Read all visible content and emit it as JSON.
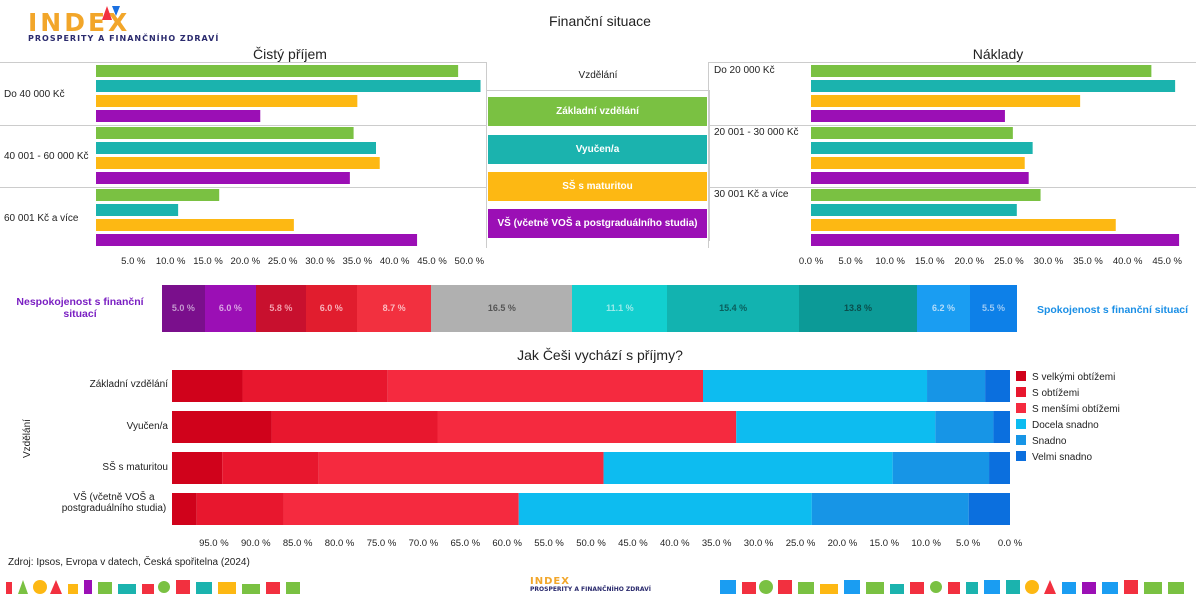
{
  "header": {
    "logo_text": "INDEX",
    "logo_subtitle": "PROSPERITY A FINANČNÍHO ZDRAVÍ",
    "title": "Finanční situace"
  },
  "colors": {
    "zakladni": "#7ac142",
    "vyucen": "#1bb3ae",
    "ss": "#fdb813",
    "vs": "#9b0fb5",
    "grid": "#cccccc"
  },
  "education_legend": {
    "title": "Vzdělání",
    "items": [
      "Základní vzdělání",
      "Vyučen/a",
      "SŠ s maturitou",
      "VŠ (včetně VOŠ a postgraduálního studia)"
    ]
  },
  "chart_data": [
    {
      "type": "bar",
      "orientation": "horizontal",
      "title": "Čistý příjem",
      "categories": [
        "Do 40 000 Kč",
        "40 001 - 60 000 Kč",
        "60 001 Kč a více"
      ],
      "series": [
        {
          "name": "Základní vzdělání",
          "values": [
            48.5,
            34.5,
            16.5
          ]
        },
        {
          "name": "Vyučen/a",
          "values": [
            51.5,
            37.5,
            11.0
          ]
        },
        {
          "name": "SŠ s maturitou",
          "values": [
            35.0,
            38.0,
            26.5
          ]
        },
        {
          "name": "VŠ (včetně VOŠ a postgraduálního studia)",
          "values": [
            22.0,
            34.0,
            43.0
          ]
        }
      ],
      "xlim": [
        0,
        52.5
      ],
      "ticks": [
        "5.0 %",
        "10.0 %",
        "15.0 %",
        "20.0 %",
        "25.0 %",
        "30.0 %",
        "35.0 %",
        "40.0 %",
        "45.0 %",
        "50.0 %"
      ],
      "tick_values": [
        5,
        10,
        15,
        20,
        25,
        30,
        35,
        40,
        45,
        50
      ]
    },
    {
      "type": "bar",
      "orientation": "horizontal",
      "title": "Náklady",
      "categories": [
        "Do 20 000 Kč",
        "20 001 - 30 000 Kč",
        "30 001 Kč a více"
      ],
      "series": [
        {
          "name": "Základní vzdělání",
          "values": [
            43.0,
            25.5,
            29.0
          ]
        },
        {
          "name": "Vyučen/a",
          "values": [
            46.0,
            28.0,
            26.0
          ]
        },
        {
          "name": "SŠ s maturitou",
          "values": [
            34.0,
            27.0,
            38.5
          ]
        },
        {
          "name": "VŠ (včetně VOŠ a postgraduálního studia)",
          "values": [
            24.5,
            27.5,
            46.5
          ]
        }
      ],
      "xlim": [
        0,
        47.5
      ],
      "ticks": [
        "0.0 %",
        "5.0 %",
        "10.0 %",
        "15.0 %",
        "20.0 %",
        "25.0 %",
        "30.0 %",
        "35.0 %",
        "40.0 %",
        "45.0 %"
      ],
      "tick_values": [
        0,
        5,
        10,
        15,
        20,
        25,
        30,
        35,
        40,
        45
      ]
    },
    {
      "type": "bar",
      "orientation": "horizontal",
      "stacked": true,
      "left_label": "Nespokojenost s finanční situací",
      "right_label": "Spokojenost s finanční situací",
      "segments": [
        {
          "label": "5.0 %",
          "value": 5.0,
          "color": "#7a0f8c",
          "text_color": "#c59ad0"
        },
        {
          "label": "6.0 %",
          "value": 6.0,
          "color": "#9b0fb5",
          "text_color": "#d9a5e3"
        },
        {
          "label": "5.8 %",
          "value": 5.8,
          "color": "#c8102e",
          "text_color": "#f2a0ad"
        },
        {
          "label": "6.0 %",
          "value": 6.0,
          "color": "#e11d2e",
          "text_color": "#f7b3bb"
        },
        {
          "label": "8.7 %",
          "value": 8.7,
          "color": "#f2303f",
          "text_color": "#fbbcc2"
        },
        {
          "label": "16.5 %",
          "value": 16.5,
          "color": "#b0b0b0",
          "text_color": "#555555"
        },
        {
          "label": "11.1 %",
          "value": 11.1,
          "color": "#12cfcf",
          "text_color": "#9beaea"
        },
        {
          "label": "15.4 %",
          "value": 15.4,
          "color": "#12b3b0",
          "text_color": "#0a5e5c"
        },
        {
          "label": "13.8 %",
          "value": 13.8,
          "color": "#0c9a97",
          "text_color": "#0a4e4c"
        },
        {
          "label": "6.2 %",
          "value": 6.2,
          "color": "#1a9df2",
          "text_color": "#b3dcfa"
        },
        {
          "label": "5.5 %",
          "value": 5.5,
          "color": "#0d80e8",
          "text_color": "#9ccaf5"
        }
      ]
    },
    {
      "type": "bar",
      "orientation": "horizontal",
      "stacked": true,
      "title": "Jak Češi vychází s příjmy?",
      "ylabel": "Vzdělání",
      "categories": [
        "Základní vzdělání",
        "Vyučen/a",
        "SŠ s maturitou",
        "VŠ (včetně VOŠ a postgraduálního studia)"
      ],
      "series": [
        {
          "name": "S velkými obtížemi",
          "color": "#d0021b",
          "values": [
            8.5,
            12.0,
            6.0,
            3.0
          ]
        },
        {
          "name": "S obtížemi",
          "color": "#e8172e",
          "values": [
            17.5,
            20.0,
            11.5,
            10.5
          ]
        },
        {
          "name": "S menšími obtížemi",
          "color": "#f52a3f",
          "values": [
            38.0,
            36.0,
            34.0,
            28.5
          ]
        },
        {
          "name": "Docela snadno",
          "color": "#0dbcf0",
          "values": [
            27.0,
            24.0,
            34.5,
            35.5
          ]
        },
        {
          "name": "Snadno",
          "color": "#1795e6",
          "values": [
            7.0,
            7.0,
            11.5,
            19.0
          ]
        },
        {
          "name": "Velmi snadno",
          "color": "#0b6fde",
          "values": [
            3.0,
            2.0,
            2.5,
            5.0
          ]
        }
      ],
      "xlim": [
        100,
        0
      ],
      "ticks": [
        "95.0 %",
        "90.0 %",
        "85.0 %",
        "80.0 %",
        "75.0 %",
        "70.0 %",
        "65.0 %",
        "60.0 %",
        "55.0 %",
        "50.0 %",
        "45.0 %",
        "40.0 %",
        "35.0 %",
        "30.0 %",
        "25.0 %",
        "20.0 %",
        "15.0 %",
        "10.0 %",
        "5.0 %",
        "0.0 %"
      ],
      "tick_values": [
        95,
        90,
        85,
        80,
        75,
        70,
        65,
        60,
        55,
        50,
        45,
        40,
        35,
        30,
        25,
        20,
        15,
        10,
        5,
        0
      ]
    }
  ],
  "footer": {
    "source": "Zdroj: Ipsos, Evropa v datech, Česká spořitelna (2024)",
    "logo_text": "INDEX",
    "logo_subtitle": "PROSPERITY A FINANČNÍHO ZDRAVÍ"
  }
}
